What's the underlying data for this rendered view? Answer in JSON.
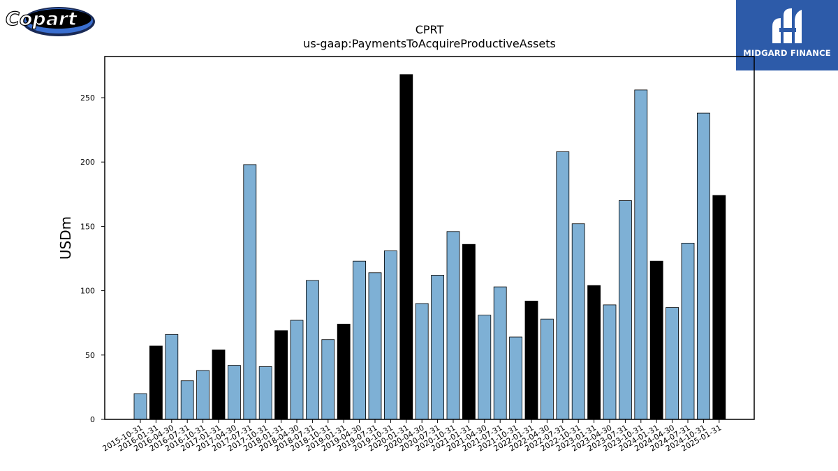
{
  "brand_left": {
    "text": "Copart"
  },
  "brand_right": {
    "text": "MIDGARD FINANCE"
  },
  "colors": {
    "bar_regular": "#7eb0d5",
    "bar_highlight": "#000000",
    "brand_blue": "#2d5ba9"
  },
  "chart_data": {
    "type": "bar",
    "title": "CPRT",
    "subtitle": "us-gaap:PaymentsToAcquireProductiveAssets",
    "xlabel": "",
    "ylabel": "USDm",
    "ylim": [
      0,
      282
    ],
    "yticks": [
      0,
      50,
      100,
      150,
      200,
      250
    ],
    "grid": false,
    "categories": [
      "2015-10-31",
      "2016-01-31",
      "2016-04-30",
      "2016-07-31",
      "2016-10-31",
      "2017-01-31",
      "2017-04-30",
      "2017-07-31",
      "2017-10-31",
      "2018-01-31",
      "2018-04-30",
      "2018-07-31",
      "2018-10-31",
      "2019-01-31",
      "2019-04-30",
      "2019-07-31",
      "2019-10-31",
      "2020-01-31",
      "2020-04-30",
      "2020-07-31",
      "2020-10-31",
      "2021-01-31",
      "2021-04-30",
      "2021-07-31",
      "2021-10-31",
      "2022-01-31",
      "2022-04-30",
      "2022-07-31",
      "2022-10-31",
      "2023-01-31",
      "2023-04-30",
      "2023-07-31",
      "2023-10-31",
      "2024-01-31",
      "2024-04-30",
      "2024-07-31",
      "2024-10-31",
      "2025-01-31"
    ],
    "values": [
      20,
      57,
      66,
      30,
      38,
      54,
      42,
      198,
      41,
      69,
      77,
      108,
      62,
      74,
      123,
      114,
      131,
      268,
      90,
      112,
      146,
      136,
      81,
      103,
      64,
      92,
      78,
      208,
      152,
      104,
      89,
      170,
      256,
      123,
      87,
      137,
      238,
      174
    ],
    "highlight": [
      false,
      true,
      false,
      false,
      false,
      true,
      false,
      false,
      false,
      true,
      false,
      false,
      false,
      true,
      false,
      false,
      false,
      true,
      false,
      false,
      false,
      true,
      false,
      false,
      false,
      true,
      false,
      false,
      false,
      true,
      false,
      false,
      false,
      true,
      false,
      false,
      false,
      true
    ]
  }
}
